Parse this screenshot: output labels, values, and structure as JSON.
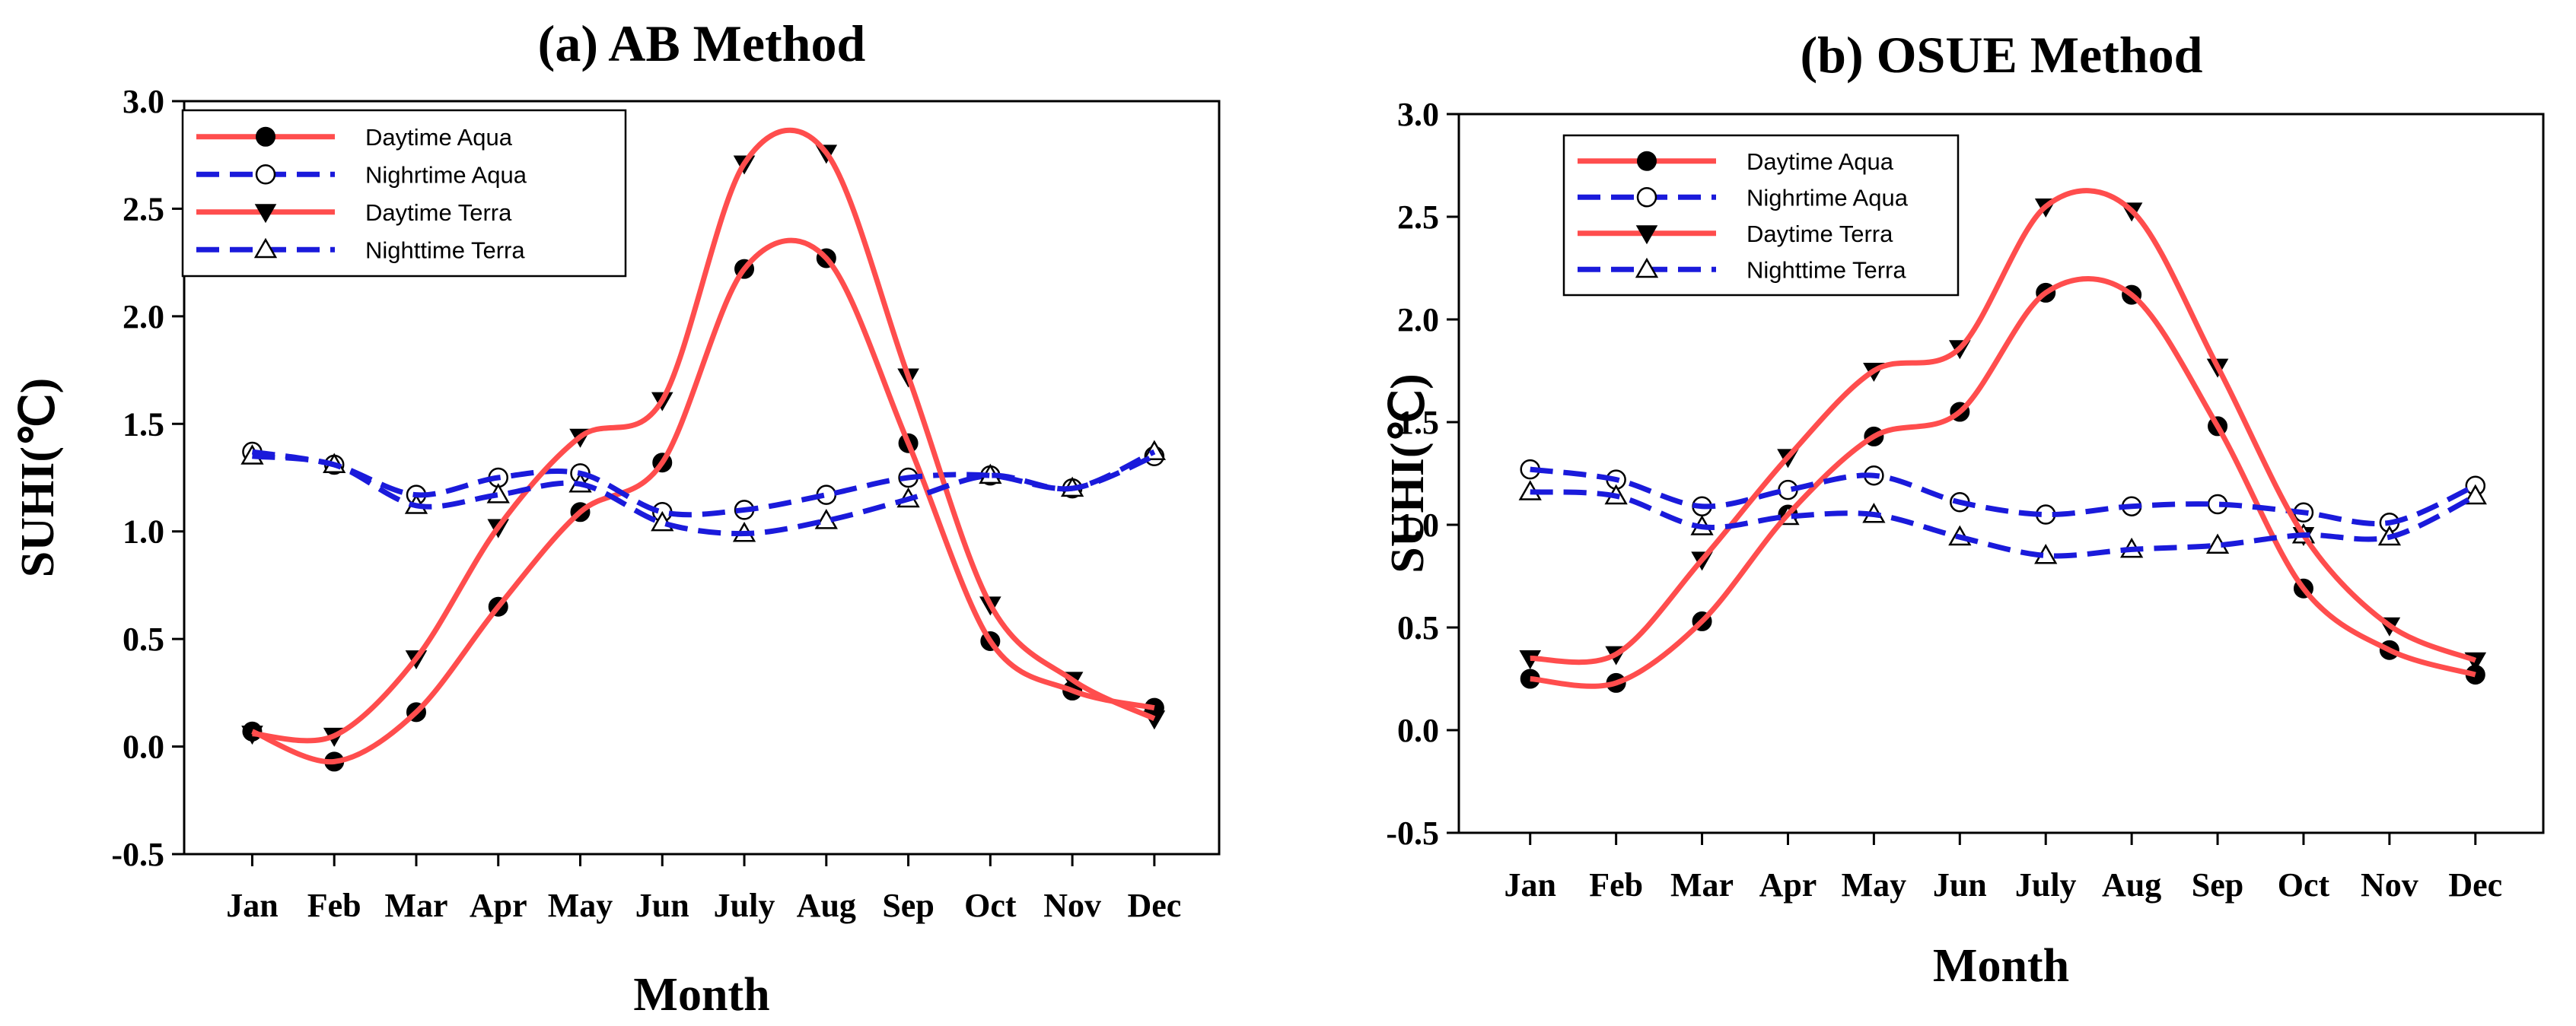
{
  "colors": {
    "day": "#ff4d4d",
    "night": "#1a1adb",
    "axis": "#000000"
  },
  "chart_data": [
    {
      "type": "line",
      "title": "(a) AB Method",
      "xlabel": "Month",
      "ylabel": "SUHI(℃)",
      "categories": [
        "Jan",
        "Feb",
        "Mar",
        "Apr",
        "May",
        "Jun",
        "July",
        "Aug",
        "Sep",
        "Oct",
        "Nov",
        "Dec"
      ],
      "ylim": [
        -0.5,
        3.0
      ],
      "yticks": [
        "-0.5",
        "0.0",
        "0.5",
        "1.0",
        "1.5",
        "2.0",
        "2.5",
        "3.0"
      ],
      "legend_position": "top-left",
      "grid": false,
      "series": [
        {
          "name": "Daytime Aqua",
          "color": "#ff4d4d",
          "dash": "solid",
          "marker": "circle-filled",
          "values": [
            0.07,
            -0.07,
            0.16,
            0.65,
            1.09,
            1.32,
            2.22,
            2.27,
            1.41,
            0.49,
            0.26,
            0.18
          ]
        },
        {
          "name": "Nighrtime Aqua",
          "color": "#1a1adb",
          "dash": "dashed",
          "marker": "circle-open",
          "values": [
            1.37,
            1.31,
            1.17,
            1.25,
            1.27,
            1.09,
            1.1,
            1.17,
            1.25,
            1.26,
            1.2,
            1.35
          ]
        },
        {
          "name": "Daytime Terra",
          "color": "#ff4d4d",
          "dash": "solid",
          "marker": "triangle-down-filled",
          "values": [
            0.06,
            0.05,
            0.41,
            1.02,
            1.44,
            1.61,
            2.71,
            2.76,
            1.72,
            0.66,
            0.31,
            0.13
          ]
        },
        {
          "name": "Nighttime Terra",
          "color": "#1a1adb",
          "dash": "dashed",
          "marker": "triangle-up-open",
          "values": [
            1.35,
            1.31,
            1.12,
            1.17,
            1.22,
            1.04,
            0.99,
            1.05,
            1.15,
            1.26,
            1.2,
            1.37
          ]
        }
      ]
    },
    {
      "type": "line",
      "title": "(b) OSUE Method",
      "xlabel": "Month",
      "ylabel": "SUHI(℃)",
      "categories": [
        "Jan",
        "Feb",
        "Mar",
        "Apr",
        "May",
        "Jun",
        "July",
        "Aug",
        "Sep",
        "Oct",
        "Nov",
        "Dec"
      ],
      "ylim": [
        -0.5,
        3.0
      ],
      "yticks": [
        "-0.5",
        "0.0",
        "0.5",
        "1.0",
        "1.5",
        "2.0",
        "2.5",
        "3.0"
      ],
      "legend_position": "top-left",
      "grid": false,
      "series": [
        {
          "name": "Daytime Aqua",
          "color": "#ff4d4d",
          "dash": "solid",
          "marker": "circle-filled",
          "values": [
            0.25,
            0.23,
            0.53,
            1.05,
            1.43,
            1.55,
            2.13,
            2.12,
            1.48,
            0.69,
            0.39,
            0.27
          ]
        },
        {
          "name": "Nighrtime Aqua",
          "color": "#1a1adb",
          "dash": "dashed",
          "marker": "circle-open",
          "values": [
            1.27,
            1.22,
            1.09,
            1.17,
            1.24,
            1.11,
            1.05,
            1.09,
            1.1,
            1.06,
            1.01,
            1.19
          ]
        },
        {
          "name": "Daytime Terra",
          "color": "#ff4d4d",
          "dash": "solid",
          "marker": "triangle-down-filled",
          "values": [
            0.35,
            0.37,
            0.83,
            1.33,
            1.75,
            1.86,
            2.55,
            2.53,
            1.77,
            0.95,
            0.51,
            0.34
          ]
        },
        {
          "name": "Nighttime Terra",
          "color": "#1a1adb",
          "dash": "dashed",
          "marker": "triangle-up-open",
          "values": [
            1.16,
            1.14,
            0.99,
            1.04,
            1.05,
            0.94,
            0.85,
            0.88,
            0.9,
            0.95,
            0.94,
            1.14
          ]
        }
      ]
    }
  ]
}
